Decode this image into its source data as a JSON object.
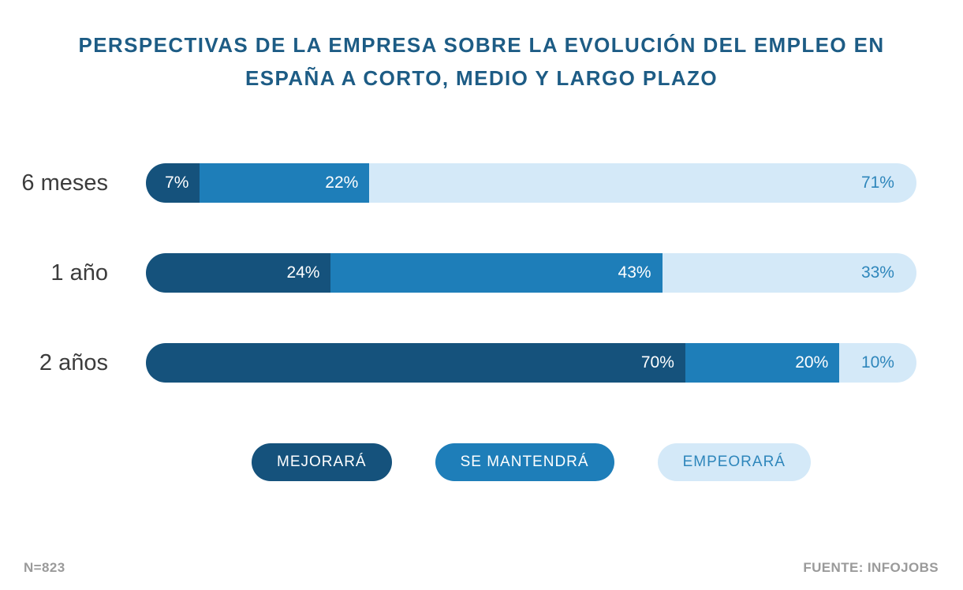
{
  "title": {
    "line1": "PERSPECTIVAS DE LA EMPRESA SOBRE LA EVOLUCIÓN DEL EMPLEO EN",
    "line2": "ESPAÑA A CORTO, MEDIO Y LARGO PLAZO"
  },
  "chart_data": {
    "type": "bar",
    "orientation": "horizontal",
    "stacked": true,
    "title": "PERSPECTIVAS DE LA EMPRESA SOBRE LA EVOLUCIÓN DEL EMPLEO EN ESPAÑA A CORTO, MEDIO Y LARGO PLAZO",
    "categories": [
      "6 meses",
      "1 año",
      "2 años"
    ],
    "series": [
      {
        "name": "MEJORARÁ",
        "values": [
          7,
          24,
          70
        ],
        "color": "#15527c",
        "value_label_color": "#ffffff",
        "legend_text_color": "#ffffff"
      },
      {
        "name": "SE MANTENDRÁ",
        "values": [
          22,
          43,
          20
        ],
        "color": "#1e7eb9",
        "value_label_color": "#ffffff",
        "legend_text_color": "#ffffff"
      },
      {
        "name": "EMPEORARÁ",
        "values": [
          71,
          33,
          10
        ],
        "color": "#d4e9f8",
        "value_label_color": "#2e86bb",
        "legend_text_color": "#2e86bb"
      }
    ],
    "value_suffix": "%",
    "xlim": [
      0,
      100
    ],
    "grid": false,
    "legend_position": "bottom"
  },
  "footer": {
    "sample_size": "N=823",
    "source": "FUENTE: INFOJOBS"
  },
  "colors": {
    "title": "#1d5c85",
    "category_label": "#3c3c3c",
    "footer_text": "#9a9a9a",
    "background": "#ffffff"
  }
}
